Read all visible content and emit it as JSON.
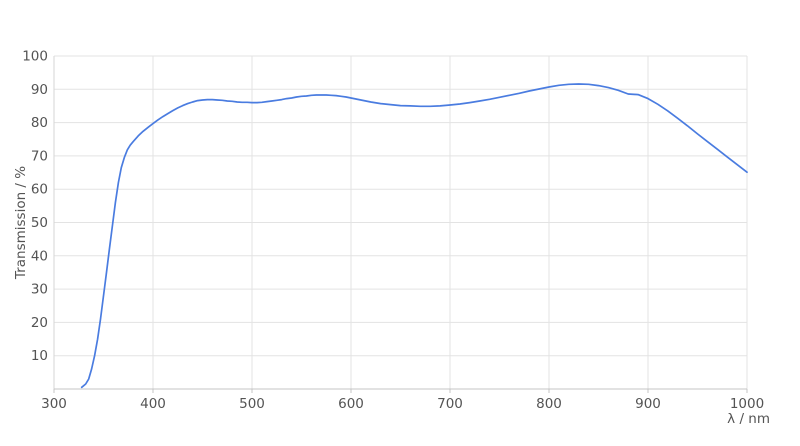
{
  "chart_data": {
    "type": "line",
    "title": "",
    "xlabel": "λ / nm",
    "ylabel": "Transmission / %",
    "xlim": [
      300,
      1000
    ],
    "ylim": [
      0,
      100
    ],
    "x_ticks": [
      300,
      400,
      500,
      600,
      700,
      800,
      900,
      1000
    ],
    "y_ticks": [
      10,
      20,
      30,
      40,
      50,
      60,
      70,
      80,
      90,
      100
    ],
    "grid": "on",
    "legend": "none",
    "series": [
      {
        "name": "Transmission",
        "color": "#4a7ce0",
        "points": [
          [
            328,
            0.5
          ],
          [
            332,
            1.5
          ],
          [
            335,
            3
          ],
          [
            338,
            6
          ],
          [
            341,
            10
          ],
          [
            344,
            15
          ],
          [
            347,
            21
          ],
          [
            350,
            28
          ],
          [
            353,
            35
          ],
          [
            356,
            42
          ],
          [
            359,
            49
          ],
          [
            362,
            56
          ],
          [
            365,
            62
          ],
          [
            368,
            66.5
          ],
          [
            371,
            69.5
          ],
          [
            374,
            71.8
          ],
          [
            377,
            73.2
          ],
          [
            380,
            74.3
          ],
          [
            385,
            76
          ],
          [
            390,
            77.4
          ],
          [
            395,
            78.6
          ],
          [
            400,
            79.7
          ],
          [
            405,
            80.8
          ],
          [
            410,
            81.8
          ],
          [
            415,
            82.7
          ],
          [
            420,
            83.6
          ],
          [
            425,
            84.4
          ],
          [
            430,
            85.1
          ],
          [
            435,
            85.7
          ],
          [
            440,
            86.2
          ],
          [
            445,
            86.6
          ],
          [
            450,
            86.8
          ],
          [
            455,
            86.9
          ],
          [
            460,
            86.9
          ],
          [
            465,
            86.8
          ],
          [
            470,
            86.7
          ],
          [
            475,
            86.5
          ],
          [
            480,
            86.4
          ],
          [
            485,
            86.2
          ],
          [
            490,
            86.1
          ],
          [
            495,
            86.1
          ],
          [
            500,
            86
          ],
          [
            505,
            86
          ],
          [
            510,
            86.1
          ],
          [
            515,
            86.3
          ],
          [
            520,
            86.5
          ],
          [
            525,
            86.7
          ],
          [
            530,
            86.9
          ],
          [
            535,
            87.2
          ],
          [
            540,
            87.4
          ],
          [
            545,
            87.7
          ],
          [
            550,
            87.9
          ],
          [
            555,
            88
          ],
          [
            560,
            88.2
          ],
          [
            565,
            88.3
          ],
          [
            570,
            88.3
          ],
          [
            575,
            88.3
          ],
          [
            580,
            88.2
          ],
          [
            585,
            88.1
          ],
          [
            590,
            87.9
          ],
          [
            595,
            87.7
          ],
          [
            600,
            87.4
          ],
          [
            610,
            86.8
          ],
          [
            620,
            86.2
          ],
          [
            630,
            85.7
          ],
          [
            640,
            85.4
          ],
          [
            650,
            85.1
          ],
          [
            660,
            85
          ],
          [
            670,
            84.9
          ],
          [
            680,
            84.9
          ],
          [
            690,
            85
          ],
          [
            700,
            85.3
          ],
          [
            710,
            85.6
          ],
          [
            720,
            86
          ],
          [
            730,
            86.5
          ],
          [
            740,
            87
          ],
          [
            750,
            87.6
          ],
          [
            760,
            88.2
          ],
          [
            770,
            88.8
          ],
          [
            780,
            89.5
          ],
          [
            790,
            90.1
          ],
          [
            800,
            90.7
          ],
          [
            810,
            91.2
          ],
          [
            820,
            91.5
          ],
          [
            830,
            91.6
          ],
          [
            840,
            91.5
          ],
          [
            850,
            91.1
          ],
          [
            860,
            90.5
          ],
          [
            870,
            89.7
          ],
          [
            880,
            88.6
          ],
          [
            890,
            88.4
          ],
          [
            900,
            87.2
          ],
          [
            910,
            85.5
          ],
          [
            920,
            83.5
          ],
          [
            930,
            81.3
          ],
          [
            940,
            79
          ],
          [
            950,
            76.6
          ],
          [
            960,
            74.3
          ],
          [
            970,
            72
          ],
          [
            980,
            69.7
          ],
          [
            990,
            67.4
          ],
          [
            1000,
            65.1
          ]
        ]
      }
    ]
  },
  "style": {
    "background": "#ffffff",
    "grid_color": "#e3e3e3",
    "x_axis_color": "#c4c4c4",
    "y_axis_color": "#d6d6d6",
    "tick_color": "#c4c4c4",
    "label_color": "#545454",
    "line_color": "#4a7ce0"
  }
}
